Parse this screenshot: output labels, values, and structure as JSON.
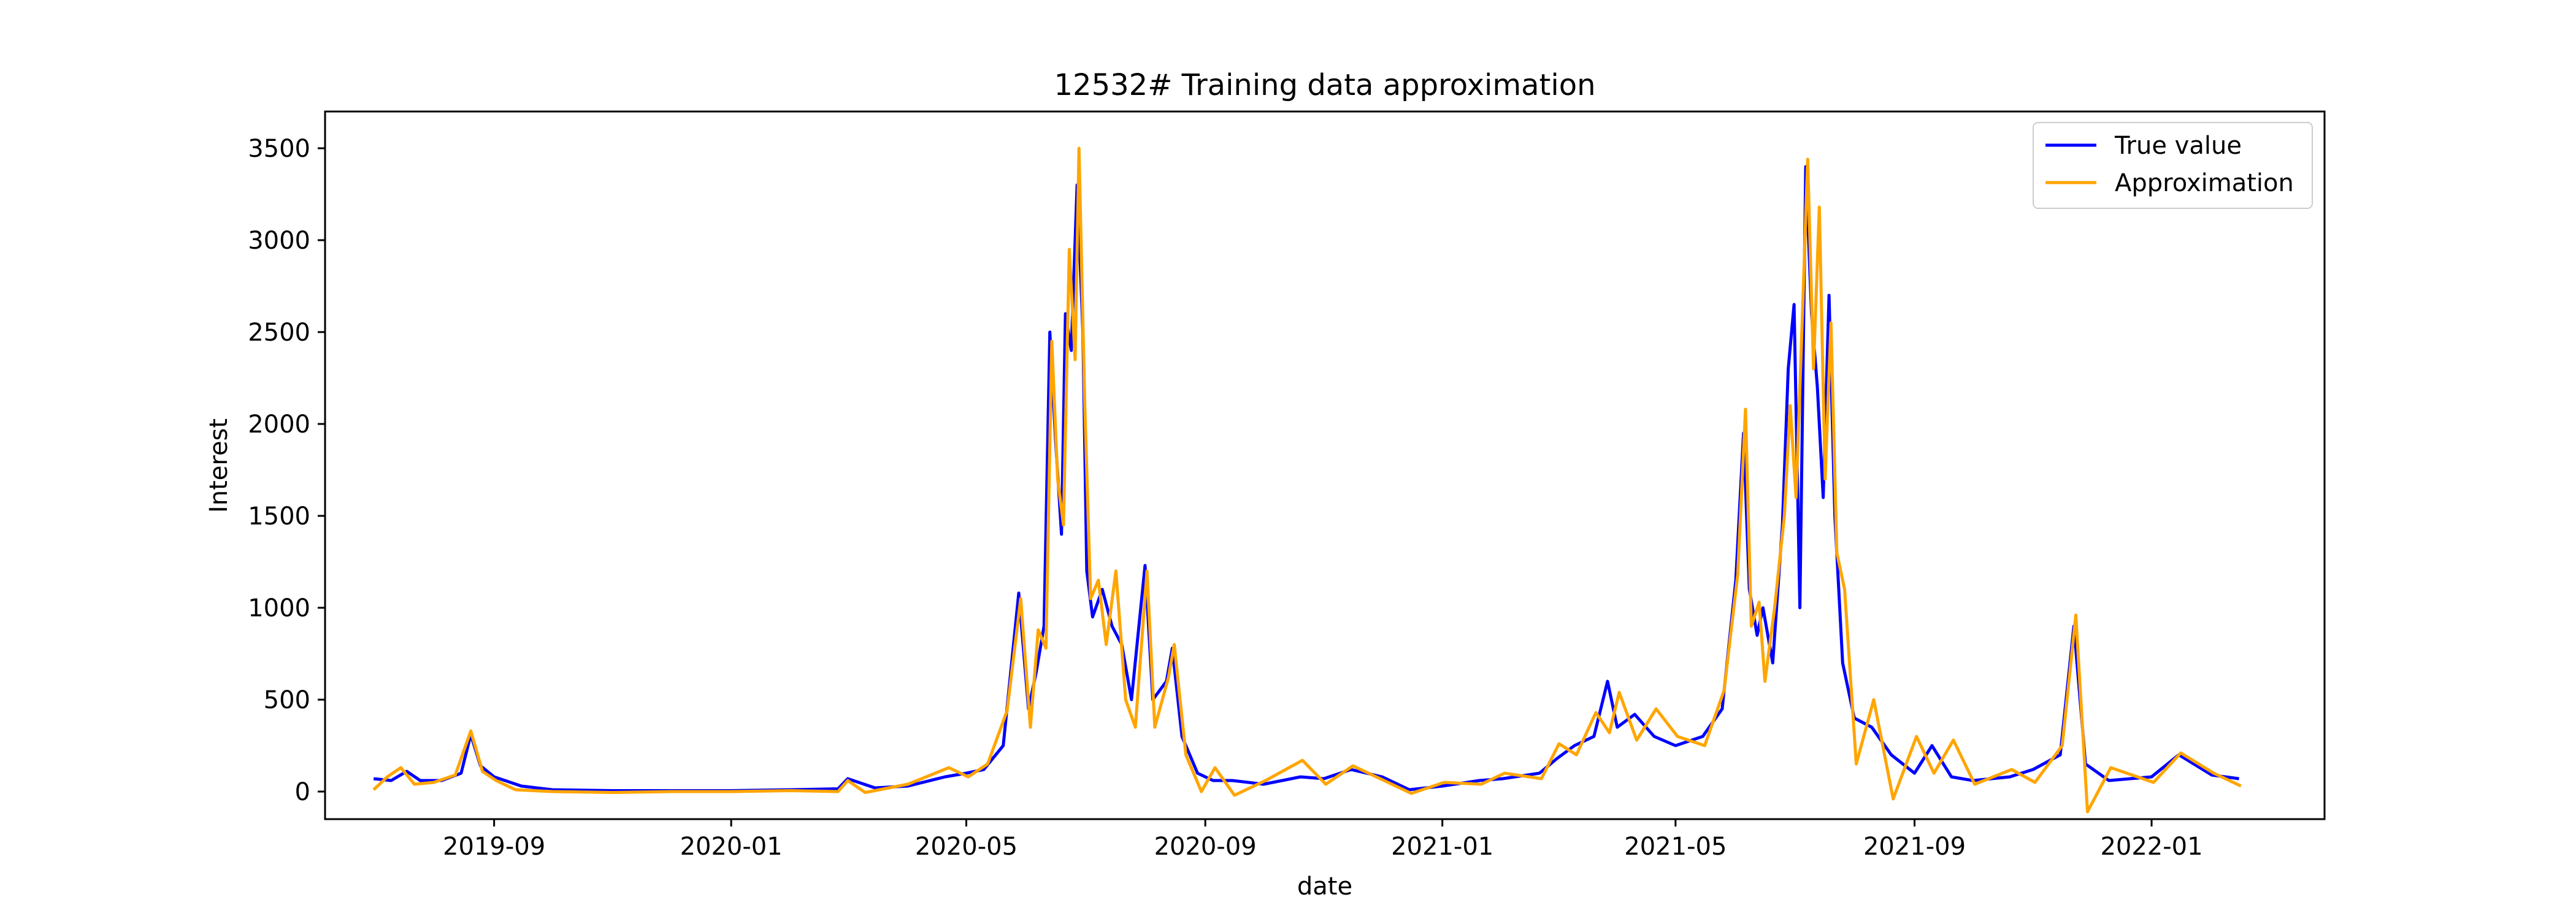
{
  "chart_data": {
    "type": "line",
    "title": "12532# Training data approximation",
    "xlabel": "date",
    "ylabel": "Interest",
    "xlim": [
      "2019-06-06",
      "2022-03-31"
    ],
    "ylim": [
      -150,
      3700
    ],
    "x_ticks": [
      "2019-09",
      "2020-01",
      "2020-05",
      "2020-09",
      "2021-01",
      "2021-05",
      "2021-09",
      "2022-01"
    ],
    "y_ticks": [
      0,
      500,
      1000,
      1500,
      2000,
      2500,
      3000,
      3500
    ],
    "grid": false,
    "legend_position": "top-right",
    "series": [
      {
        "name": "True value",
        "color": "#0000ff",
        "points": [
          [
            "2019-07-01",
            70
          ],
          [
            "2019-07-10",
            60
          ],
          [
            "2019-07-18",
            110
          ],
          [
            "2019-07-25",
            60
          ],
          [
            "2019-08-05",
            60
          ],
          [
            "2019-08-15",
            100
          ],
          [
            "2019-08-20",
            310
          ],
          [
            "2019-08-25",
            140
          ],
          [
            "2019-09-01",
            80
          ],
          [
            "2019-09-15",
            30
          ],
          [
            "2019-10-01",
            10
          ],
          [
            "2019-11-01",
            5
          ],
          [
            "2019-12-01",
            5
          ],
          [
            "2020-01-01",
            5
          ],
          [
            "2020-02-01",
            10
          ],
          [
            "2020-02-25",
            15
          ],
          [
            "2020-03-01",
            70
          ],
          [
            "2020-03-15",
            20
          ],
          [
            "2020-04-01",
            30
          ],
          [
            "2020-04-20",
            80
          ],
          [
            "2020-05-01",
            100
          ],
          [
            "2020-05-10",
            120
          ],
          [
            "2020-05-20",
            250
          ],
          [
            "2020-05-28",
            1080
          ],
          [
            "2020-06-02",
            450
          ],
          [
            "2020-06-06",
            650
          ],
          [
            "2020-06-10",
            900
          ],
          [
            "2020-06-13",
            2500
          ],
          [
            "2020-06-16",
            1900
          ],
          [
            "2020-06-19",
            1400
          ],
          [
            "2020-06-21",
            2600
          ],
          [
            "2020-06-24",
            2400
          ],
          [
            "2020-06-27",
            3300
          ],
          [
            "2020-06-30",
            2500
          ],
          [
            "2020-07-02",
            1200
          ],
          [
            "2020-07-05",
            950
          ],
          [
            "2020-07-10",
            1100
          ],
          [
            "2020-07-15",
            900
          ],
          [
            "2020-07-20",
            800
          ],
          [
            "2020-07-25",
            500
          ],
          [
            "2020-08-01",
            1230
          ],
          [
            "2020-08-05",
            500
          ],
          [
            "2020-08-12",
            600
          ],
          [
            "2020-08-15",
            780
          ],
          [
            "2020-08-20",
            300
          ],
          [
            "2020-08-28",
            100
          ],
          [
            "2020-09-05",
            60
          ],
          [
            "2020-09-15",
            60
          ],
          [
            "2020-10-01",
            40
          ],
          [
            "2020-10-20",
            80
          ],
          [
            "2020-11-01",
            70
          ],
          [
            "2020-11-15",
            120
          ],
          [
            "2020-12-01",
            80
          ],
          [
            "2020-12-15",
            10
          ],
          [
            "2021-01-01",
            30
          ],
          [
            "2021-01-20",
            60
          ],
          [
            "2021-02-01",
            70
          ],
          [
            "2021-02-20",
            100
          ],
          [
            "2021-03-01",
            180
          ],
          [
            "2021-03-10",
            250
          ],
          [
            "2021-03-20",
            300
          ],
          [
            "2021-03-27",
            600
          ],
          [
            "2021-04-01",
            350
          ],
          [
            "2021-04-10",
            420
          ],
          [
            "2021-04-20",
            300
          ],
          [
            "2021-05-01",
            250
          ],
          [
            "2021-05-15",
            300
          ],
          [
            "2021-05-25",
            450
          ],
          [
            "2021-06-01",
            1150
          ],
          [
            "2021-06-05",
            1950
          ],
          [
            "2021-06-08",
            1100
          ],
          [
            "2021-06-12",
            850
          ],
          [
            "2021-06-15",
            1000
          ],
          [
            "2021-06-20",
            700
          ],
          [
            "2021-06-25",
            1450
          ],
          [
            "2021-06-28",
            2300
          ],
          [
            "2021-07-01",
            2650
          ],
          [
            "2021-07-04",
            1000
          ],
          [
            "2021-07-07",
            3400
          ],
          [
            "2021-07-10",
            2600
          ],
          [
            "2021-07-13",
            2200
          ],
          [
            "2021-07-16",
            1600
          ],
          [
            "2021-07-19",
            2700
          ],
          [
            "2021-07-22",
            1500
          ],
          [
            "2021-07-26",
            700
          ],
          [
            "2021-08-01",
            400
          ],
          [
            "2021-08-10",
            350
          ],
          [
            "2021-08-20",
            200
          ],
          [
            "2021-09-01",
            100
          ],
          [
            "2021-09-10",
            250
          ],
          [
            "2021-09-20",
            80
          ],
          [
            "2021-10-01",
            60
          ],
          [
            "2021-10-20",
            80
          ],
          [
            "2021-11-01",
            120
          ],
          [
            "2021-11-15",
            200
          ],
          [
            "2021-11-22",
            900
          ],
          [
            "2021-11-28",
            150
          ],
          [
            "2021-12-10",
            60
          ],
          [
            "2022-01-01",
            80
          ],
          [
            "2022-01-15",
            200
          ],
          [
            "2022-02-01",
            90
          ],
          [
            "2022-02-15",
            70
          ]
        ]
      },
      {
        "name": "Approximation",
        "color": "#ffa500",
        "points": [
          [
            "2019-07-01",
            10
          ],
          [
            "2019-07-08",
            80
          ],
          [
            "2019-07-15",
            130
          ],
          [
            "2019-07-22",
            40
          ],
          [
            "2019-08-01",
            50
          ],
          [
            "2019-08-12",
            90
          ],
          [
            "2019-08-20",
            330
          ],
          [
            "2019-08-26",
            110
          ],
          [
            "2019-09-02",
            60
          ],
          [
            "2019-09-12",
            10
          ],
          [
            "2019-10-01",
            0
          ],
          [
            "2019-11-01",
            -5
          ],
          [
            "2019-12-01",
            0
          ],
          [
            "2020-01-01",
            0
          ],
          [
            "2020-02-01",
            5
          ],
          [
            "2020-02-25",
            0
          ],
          [
            "2020-03-01",
            60
          ],
          [
            "2020-03-10",
            -5
          ],
          [
            "2020-04-01",
            40
          ],
          [
            "2020-04-22",
            130
          ],
          [
            "2020-05-02",
            80
          ],
          [
            "2020-05-12",
            150
          ],
          [
            "2020-05-22",
            440
          ],
          [
            "2020-05-29",
            1050
          ],
          [
            "2020-06-03",
            350
          ],
          [
            "2020-06-07",
            880
          ],
          [
            "2020-06-11",
            780
          ],
          [
            "2020-06-14",
            2450
          ],
          [
            "2020-06-17",
            1700
          ],
          [
            "2020-06-20",
            1450
          ],
          [
            "2020-06-23",
            2950
          ],
          [
            "2020-06-26",
            2350
          ],
          [
            "2020-06-28",
            3500
          ],
          [
            "2020-07-01",
            2100
          ],
          [
            "2020-07-04",
            1050
          ],
          [
            "2020-07-08",
            1150
          ],
          [
            "2020-07-12",
            800
          ],
          [
            "2020-07-17",
            1200
          ],
          [
            "2020-07-22",
            500
          ],
          [
            "2020-07-27",
            350
          ],
          [
            "2020-08-02",
            1200
          ],
          [
            "2020-08-06",
            350
          ],
          [
            "2020-08-13",
            620
          ],
          [
            "2020-08-16",
            800
          ],
          [
            "2020-08-22",
            200
          ],
          [
            "2020-08-30",
            0
          ],
          [
            "2020-09-06",
            130
          ],
          [
            "2020-09-16",
            -20
          ],
          [
            "2020-10-02",
            60
          ],
          [
            "2020-10-21",
            170
          ],
          [
            "2020-11-02",
            40
          ],
          [
            "2020-11-16",
            140
          ],
          [
            "2020-12-02",
            60
          ],
          [
            "2020-12-16",
            -10
          ],
          [
            "2021-01-02",
            50
          ],
          [
            "2021-01-21",
            40
          ],
          [
            "2021-02-02",
            100
          ],
          [
            "2021-02-21",
            70
          ],
          [
            "2021-03-02",
            260
          ],
          [
            "2021-03-11",
            200
          ],
          [
            "2021-03-21",
            430
          ],
          [
            "2021-03-28",
            320
          ],
          [
            "2021-04-02",
            540
          ],
          [
            "2021-04-11",
            280
          ],
          [
            "2021-04-21",
            450
          ],
          [
            "2021-05-02",
            300
          ],
          [
            "2021-05-16",
            250
          ],
          [
            "2021-05-26",
            550
          ],
          [
            "2021-06-02",
            1180
          ],
          [
            "2021-06-06",
            2080
          ],
          [
            "2021-06-09",
            900
          ],
          [
            "2021-06-13",
            1030
          ],
          [
            "2021-06-16",
            600
          ],
          [
            "2021-06-21",
            1000
          ],
          [
            "2021-06-26",
            1500
          ],
          [
            "2021-06-29",
            2100
          ],
          [
            "2021-07-02",
            1600
          ],
          [
            "2021-07-05",
            2500
          ],
          [
            "2021-07-08",
            3440
          ],
          [
            "2021-07-11",
            2300
          ],
          [
            "2021-07-14",
            3180
          ],
          [
            "2021-07-17",
            1700
          ],
          [
            "2021-07-20",
            2550
          ],
          [
            "2021-07-23",
            1300
          ],
          [
            "2021-07-27",
            1100
          ],
          [
            "2021-08-02",
            150
          ],
          [
            "2021-08-11",
            500
          ],
          [
            "2021-08-21",
            -40
          ],
          [
            "2021-09-02",
            300
          ],
          [
            "2021-09-11",
            100
          ],
          [
            "2021-09-21",
            280
          ],
          [
            "2021-10-02",
            40
          ],
          [
            "2021-10-21",
            120
          ],
          [
            "2021-11-02",
            50
          ],
          [
            "2021-11-16",
            250
          ],
          [
            "2021-11-23",
            960
          ],
          [
            "2021-11-29",
            -110
          ],
          [
            "2021-12-11",
            130
          ],
          [
            "2022-01-02",
            50
          ],
          [
            "2022-01-16",
            210
          ],
          [
            "2022-02-02",
            100
          ],
          [
            "2022-02-16",
            30
          ]
        ]
      }
    ]
  }
}
